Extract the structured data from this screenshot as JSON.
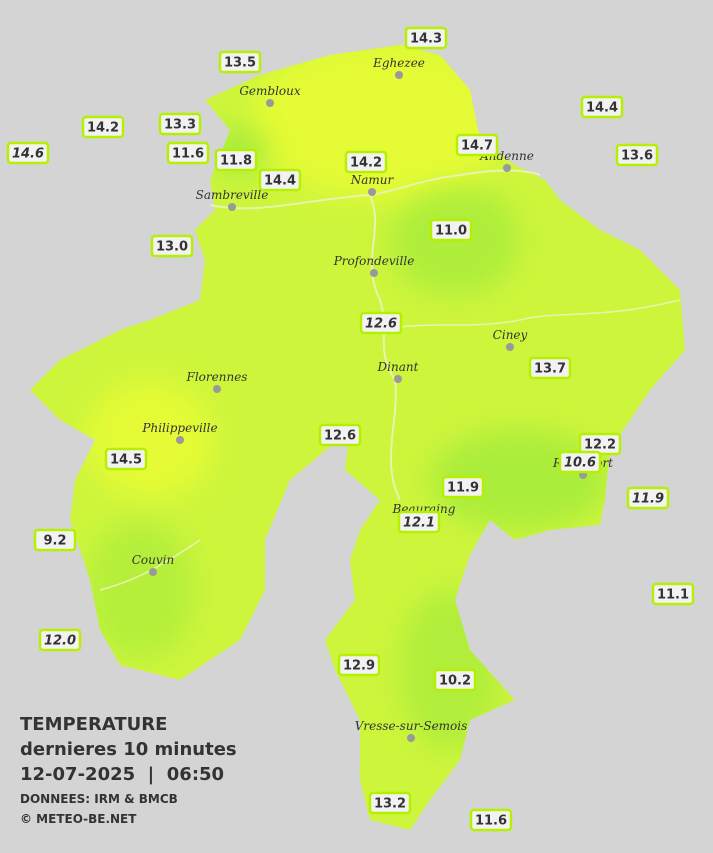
{
  "legend": {
    "title": "TEMPERATURE",
    "subtitle": "dernieres 10 minutes",
    "datetime": "12-07-2025  |  06:50",
    "source": "DONNEES: IRM & BMCB",
    "copyright": "© METEO-BE.NET"
  },
  "towns": [
    "Eghezee",
    "Gembloux",
    "Andenne",
    "Namur",
    "Sambreville",
    "Profondeville",
    "Ciney",
    "Dinant",
    "Florennes",
    "Philippeville",
    "Beauraing",
    "Rochefort",
    "Couvin",
    "Vresse-sur-Semois"
  ],
  "stations": [
    "13.5",
    "14.3",
    "14.2",
    "13.3",
    "14.6",
    "11.6",
    "11.8",
    "14.4",
    "14.2",
    "14.7",
    "14.4",
    "13.6",
    "13.0",
    "11.0",
    "12.6",
    "13.7",
    "12.6",
    "14.5",
    "12.2",
    "10.6",
    "11.9",
    "11.9",
    "12.1",
    "9.2",
    "11.1",
    "12.0",
    "12.9",
    "10.2",
    "13.2",
    "11.6"
  ]
}
